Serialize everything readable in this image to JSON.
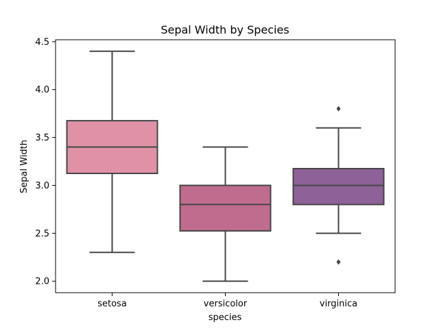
{
  "chart_data": {
    "type": "box",
    "title": "Sepal Width by Species",
    "xlabel": "species",
    "ylabel": "Sepal Width",
    "ylim": [
      1.88,
      4.52
    ],
    "yticks": [
      2.0,
      2.5,
      3.0,
      3.5,
      4.0,
      4.5
    ],
    "ytick_labels": [
      "2.0",
      "2.5",
      "3.0",
      "3.5",
      "4.0",
      "4.5"
    ],
    "grid": false,
    "categories": [
      "setosa",
      "versicolor",
      "virginica"
    ],
    "boxes": [
      {
        "category": "setosa",
        "whisker_low": 2.3,
        "q1": 3.125,
        "median": 3.4,
        "q3": 3.675,
        "whisker_high": 4.4,
        "outliers": [],
        "color": "#df92a6"
      },
      {
        "category": "versicolor",
        "whisker_low": 2.0,
        "q1": 2.525,
        "median": 2.8,
        "q3": 3.0,
        "whisker_high": 3.4,
        "outliers": [],
        "color": "#c06c8f"
      },
      {
        "category": "virginica",
        "whisker_low": 2.5,
        "q1": 2.8,
        "median": 3.0,
        "q3": 3.175,
        "whisker_high": 3.6,
        "outliers": [
          3.8,
          2.2
        ],
        "color": "#8e6198"
      }
    ],
    "line_color": "#454545"
  }
}
